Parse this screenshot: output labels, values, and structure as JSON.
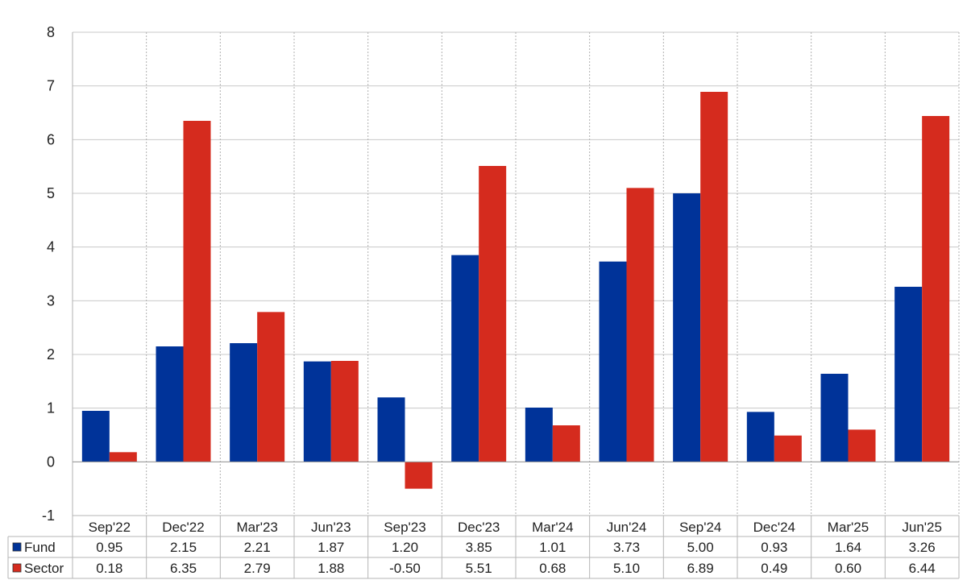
{
  "chart_data": {
    "type": "bar",
    "categories": [
      "Sep'22",
      "Dec'22",
      "Mar'23",
      "Jun'23",
      "Sep'23",
      "Dec'23",
      "Mar'24",
      "Jun'24",
      "Sep'24",
      "Dec'24",
      "Mar'25",
      "Jun'25"
    ],
    "series": [
      {
        "name": "Fund",
        "color": "#003399",
        "values": [
          0.95,
          2.15,
          2.21,
          1.87,
          1.2,
          3.85,
          1.01,
          3.73,
          5.0,
          0.93,
          1.64,
          3.26
        ],
        "labels": [
          "0.95",
          "2.15",
          "2.21",
          "1.87",
          "1.20",
          "3.85",
          "1.01",
          "3.73",
          "5.00",
          "0.93",
          "1.64",
          "3.26"
        ]
      },
      {
        "name": "Sector",
        "color": "#d52b1e",
        "values": [
          0.18,
          6.35,
          2.79,
          1.88,
          -0.5,
          5.51,
          0.68,
          5.1,
          6.89,
          0.49,
          0.6,
          6.44
        ],
        "labels": [
          "0.18",
          "6.35",
          "2.79",
          "1.88",
          "-0.50",
          "5.51",
          "0.68",
          "5.10",
          "6.89",
          "0.49",
          "0.60",
          "6.44"
        ]
      }
    ],
    "ylim": [
      -1,
      8
    ],
    "yticks": [
      "-1",
      "0",
      "1",
      "2",
      "3",
      "4",
      "5",
      "6",
      "7",
      "8"
    ],
    "negative_label_color": "#ff0000",
    "grid": true,
    "legend": "data-table-left"
  }
}
